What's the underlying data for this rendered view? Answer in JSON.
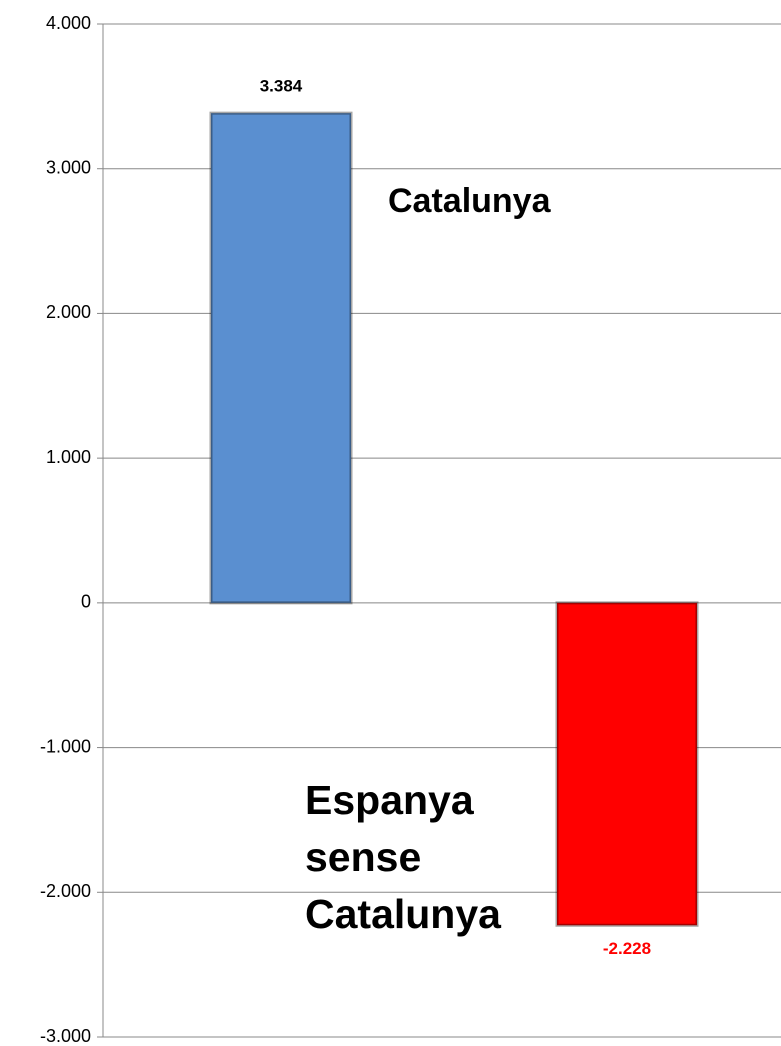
{
  "chart_data": {
    "type": "bar",
    "categories": [
      "Catalunya",
      "Espanya sense Catalunya"
    ],
    "values": [
      3384,
      -2228
    ],
    "value_labels": [
      "3.384",
      "-2.228"
    ],
    "colors": [
      "#5a8fd0",
      "#ff0000"
    ],
    "value_label_colors": [
      "#000000",
      "#ff0000"
    ],
    "ylim": [
      -3000,
      4000
    ],
    "yticks": [
      {
        "value": -3000,
        "label": "-3.000"
      },
      {
        "value": -2000,
        "label": "-2.000"
      },
      {
        "value": -1000,
        "label": "-1.000"
      },
      0,
      {
        "value": 1000,
        "label": "1.000"
      },
      {
        "value": 2000,
        "label": "2.000"
      },
      {
        "value": 3000,
        "label": "3.000"
      },
      {
        "value": 4000,
        "label": "4.000"
      }
    ],
    "grid": true
  }
}
